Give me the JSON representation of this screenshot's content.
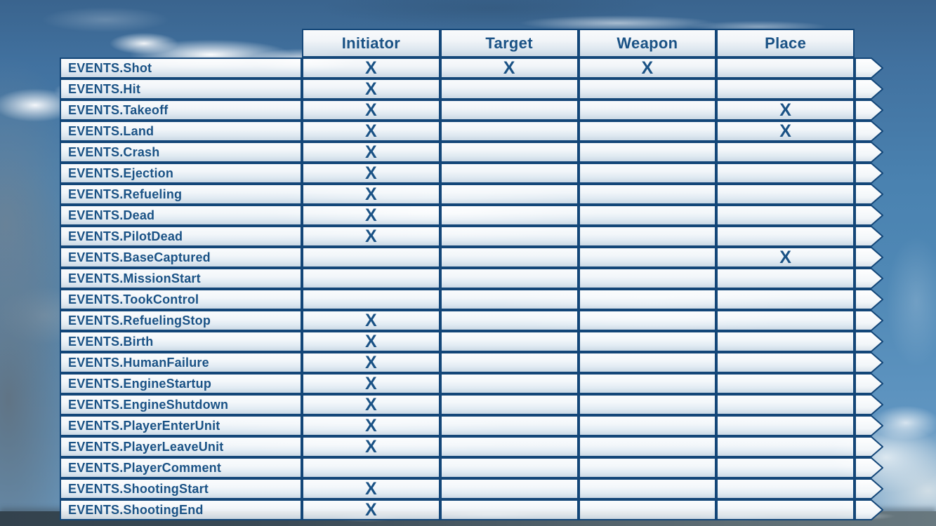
{
  "table": {
    "columns": [
      "Initiator",
      "Target",
      "Weapon",
      "Place"
    ],
    "mark_glyph": "X",
    "rows": [
      {
        "name": "EVENTS.Shot",
        "marks": [
          true,
          true,
          true,
          false
        ]
      },
      {
        "name": "EVENTS.Hit",
        "marks": [
          true,
          false,
          false,
          false
        ]
      },
      {
        "name": "EVENTS.Takeoff",
        "marks": [
          true,
          false,
          false,
          true
        ]
      },
      {
        "name": "EVENTS.Land",
        "marks": [
          true,
          false,
          false,
          true
        ]
      },
      {
        "name": "EVENTS.Crash",
        "marks": [
          true,
          false,
          false,
          false
        ]
      },
      {
        "name": "EVENTS.Ejection",
        "marks": [
          true,
          false,
          false,
          false
        ]
      },
      {
        "name": "EVENTS.Refueling",
        "marks": [
          true,
          false,
          false,
          false
        ]
      },
      {
        "name": "EVENTS.Dead",
        "marks": [
          true,
          false,
          false,
          false
        ]
      },
      {
        "name": "EVENTS.PilotDead",
        "marks": [
          true,
          false,
          false,
          false
        ]
      },
      {
        "name": "EVENTS.BaseCaptured",
        "marks": [
          false,
          false,
          false,
          true
        ]
      },
      {
        "name": "EVENTS.MissionStart",
        "marks": [
          false,
          false,
          false,
          false
        ]
      },
      {
        "name": "EVENTS.TookControl",
        "marks": [
          false,
          false,
          false,
          false
        ]
      },
      {
        "name": "EVENTS.RefuelingStop",
        "marks": [
          true,
          false,
          false,
          false
        ]
      },
      {
        "name": "EVENTS.Birth",
        "marks": [
          true,
          false,
          false,
          false
        ]
      },
      {
        "name": "EVENTS.HumanFailure",
        "marks": [
          true,
          false,
          false,
          false
        ]
      },
      {
        "name": "EVENTS.EngineStartup",
        "marks": [
          true,
          false,
          false,
          false
        ]
      },
      {
        "name": "EVENTS.EngineShutdown",
        "marks": [
          true,
          false,
          false,
          false
        ]
      },
      {
        "name": "EVENTS.PlayerEnterUnit",
        "marks": [
          true,
          false,
          false,
          false
        ]
      },
      {
        "name": "EVENTS.PlayerLeaveUnit",
        "marks": [
          true,
          false,
          false,
          false
        ]
      },
      {
        "name": "EVENTS.PlayerComment",
        "marks": [
          false,
          false,
          false,
          false
        ]
      },
      {
        "name": "EVENTS.ShootingStart",
        "marks": [
          true,
          false,
          false,
          false
        ]
      },
      {
        "name": "EVENTS.ShootingEnd",
        "marks": [
          true,
          false,
          false,
          false
        ]
      }
    ]
  },
  "colors": {
    "table_border": "#134678",
    "text_blue": "#1a5285",
    "sky_top": "#3a648e",
    "sky_bottom": "#6b9cc4",
    "cloud_deck": "#4c5c66"
  }
}
